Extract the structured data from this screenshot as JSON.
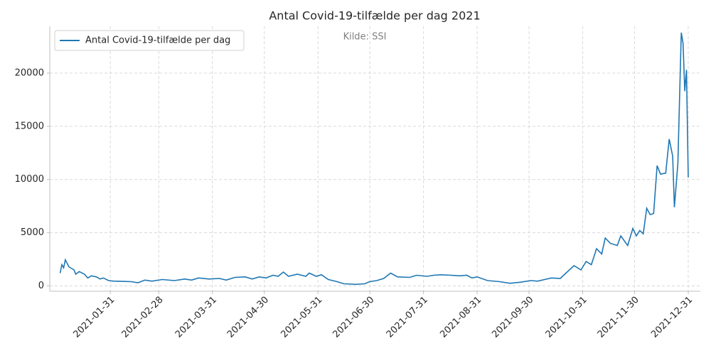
{
  "chart_data": {
    "type": "line",
    "title": "Antal Covid-19-tilfælde per dag 2021",
    "annotation": "Kilde: SSI",
    "x": [
      "2021-01-02",
      "2021-01-03",
      "2021-01-04",
      "2021-01-05",
      "2021-01-07",
      "2021-01-10",
      "2021-01-11",
      "2021-01-13",
      "2021-01-16",
      "2021-01-18",
      "2021-01-20",
      "2021-01-23",
      "2021-01-25",
      "2021-01-27",
      "2021-01-30",
      "2021-02-02",
      "2021-02-08",
      "2021-02-12",
      "2021-02-16",
      "2021-02-20",
      "2021-02-24",
      "2021-03-02",
      "2021-03-09",
      "2021-03-15",
      "2021-03-19",
      "2021-03-23",
      "2021-03-29",
      "2021-04-04",
      "2021-04-08",
      "2021-04-13",
      "2021-04-19",
      "2021-04-23",
      "2021-04-27",
      "2021-05-01",
      "2021-05-05",
      "2021-05-08",
      "2021-05-11",
      "2021-05-14",
      "2021-05-19",
      "2021-05-24",
      "2021-05-26",
      "2021-05-30",
      "2021-06-02",
      "2021-06-06",
      "2021-06-11",
      "2021-06-15",
      "2021-06-22",
      "2021-06-27",
      "2021-06-30",
      "2021-07-04",
      "2021-07-08",
      "2021-07-12",
      "2021-07-16",
      "2021-07-23",
      "2021-07-27",
      "2021-08-02",
      "2021-08-06",
      "2021-08-10",
      "2021-08-16",
      "2021-08-21",
      "2021-08-25",
      "2021-08-28",
      "2021-08-31",
      "2021-09-06",
      "2021-09-13",
      "2021-09-19",
      "2021-09-25",
      "2021-10-01",
      "2021-10-05",
      "2021-10-09",
      "2021-10-13",
      "2021-10-18",
      "2021-10-22",
      "2021-10-26",
      "2021-10-30",
      "2021-11-02",
      "2021-11-05",
      "2021-11-08",
      "2021-11-11",
      "2021-11-13",
      "2021-11-16",
      "2021-11-20",
      "2021-11-22",
      "2021-11-26",
      "2021-11-29",
      "2021-12-01",
      "2021-12-03",
      "2021-12-05",
      "2021-12-07",
      "2021-12-09",
      "2021-12-11",
      "2021-12-13",
      "2021-12-15",
      "2021-12-18",
      "2021-12-20",
      "2021-12-22",
      "2021-12-23",
      "2021-12-25",
      "2021-12-27",
      "2021-12-28",
      "2021-12-29",
      "2021-12-30",
      "2021-12-31"
    ],
    "series": [
      {
        "name": "Antal Covid-19-tilfælde per dag",
        "color": "#1f77b4",
        "values": [
          1200,
          2000,
          1700,
          2450,
          1800,
          1500,
          1100,
          1350,
          1100,
          750,
          950,
          850,
          650,
          750,
          500,
          450,
          420,
          400,
          300,
          550,
          450,
          600,
          500,
          650,
          550,
          750,
          650,
          700,
          550,
          800,
          850,
          650,
          850,
          750,
          1000,
          900,
          1300,
          900,
          1100,
          900,
          1200,
          900,
          1050,
          600,
          400,
          200,
          150,
          200,
          400,
          500,
          700,
          1200,
          850,
          800,
          1000,
          900,
          1000,
          1050,
          1000,
          950,
          1000,
          750,
          850,
          500,
          400,
          250,
          350,
          500,
          450,
          600,
          750,
          700,
          1300,
          1900,
          1500,
          2300,
          2000,
          3500,
          3000,
          4500,
          4000,
          3800,
          4700,
          3800,
          5400,
          4700,
          5200,
          4900,
          7300,
          6700,
          6800,
          11300,
          10500,
          10600,
          13800,
          12200,
          7400,
          11500,
          23800,
          22800,
          18300,
          20300,
          10200
        ]
      }
    ],
    "xlim": [
      "2020-12-27",
      "2022-01-07"
    ],
    "xticks": [
      "2021-01-31",
      "2021-02-28",
      "2021-03-31",
      "2021-04-30",
      "2021-05-31",
      "2021-06-30",
      "2021-07-31",
      "2021-08-31",
      "2021-09-30",
      "2021-10-31",
      "2021-11-30",
      "2021-12-31"
    ],
    "ylim": [
      -500,
      24400
    ],
    "yticks": [
      0,
      5000,
      10000,
      15000,
      20000
    ],
    "grid": true,
    "legend": "upper left"
  }
}
